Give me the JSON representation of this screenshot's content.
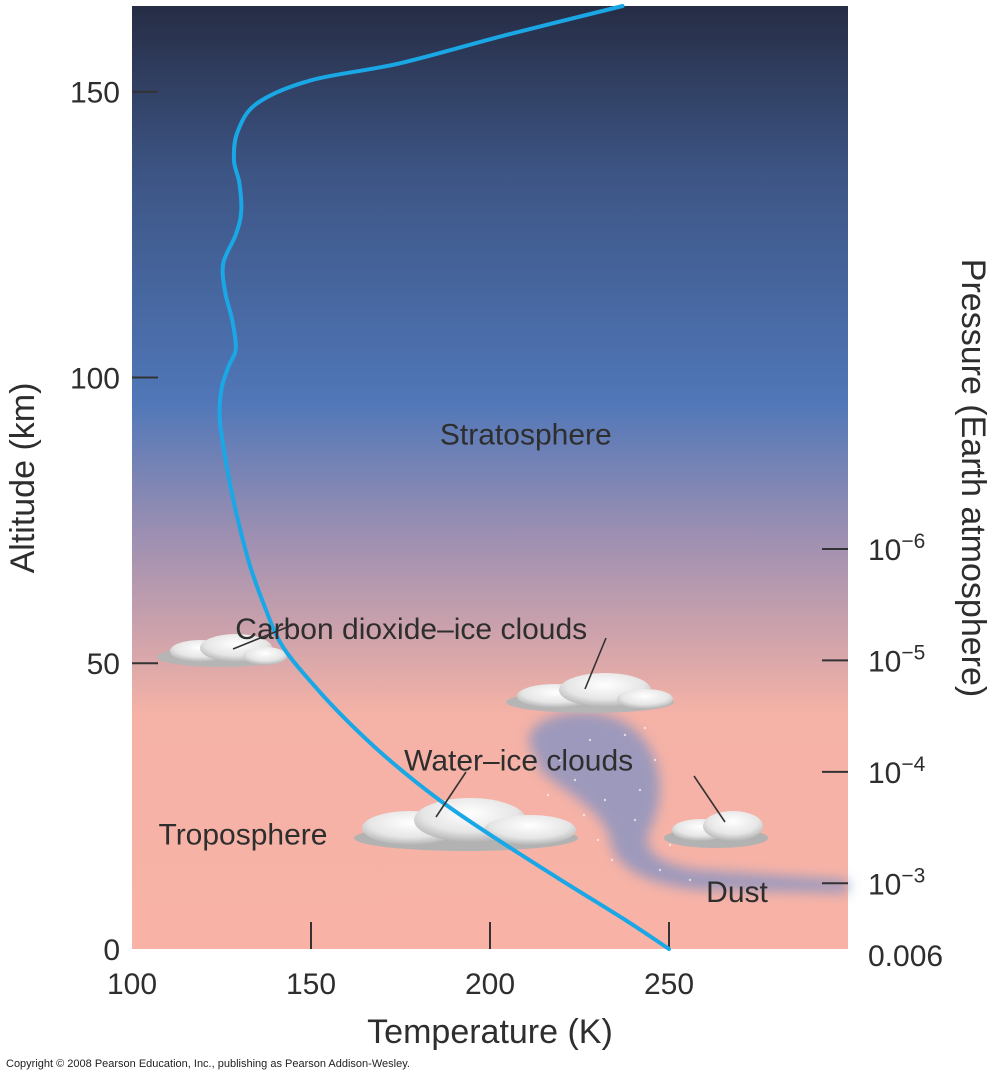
{
  "chart_data": {
    "type": "line",
    "title": "",
    "xlabel": "Temperature (K)",
    "ylabel": "Altitude (km)",
    "y2label": "Pressure (Earth atmosphere)",
    "xlim": [
      100,
      300
    ],
    "ylim": [
      0,
      165
    ],
    "x_ticks": [
      {
        "label": "100",
        "value": 100
      },
      {
        "label": "150",
        "value": 150
      },
      {
        "label": "200",
        "value": 200
      },
      {
        "label": "250",
        "value": 250
      }
    ],
    "y_ticks": [
      {
        "label": "0",
        "value": 0
      },
      {
        "label": "50",
        "value": 50
      },
      {
        "label": "100",
        "value": 100
      },
      {
        "label": "150",
        "value": 150
      }
    ],
    "pressure_ticks": [
      {
        "label": "0.006",
        "altitude": 0,
        "tick": false
      },
      {
        "label": "10",
        "exp": "−3",
        "altitude": 11.5,
        "tick": true
      },
      {
        "label": "10",
        "exp": "−4",
        "altitude": 31,
        "tick": true
      },
      {
        "label": "10",
        "exp": "−5",
        "altitude": 50.5,
        "tick": true
      },
      {
        "label": "10",
        "exp": "−6",
        "altitude": 70,
        "tick": true
      }
    ],
    "series": [
      {
        "name": "",
        "color": "#1aa7e6",
        "points": [
          [
            250,
            0
          ],
          [
            238,
            5
          ],
          [
            220,
            12
          ],
          [
            200,
            20
          ],
          [
            186,
            26
          ],
          [
            172,
            33
          ],
          [
            160,
            40
          ],
          [
            151,
            46
          ],
          [
            142,
            53
          ],
          [
            137,
            60
          ],
          [
            133,
            67
          ],
          [
            130,
            74
          ],
          [
            127.5,
            81
          ],
          [
            125.5,
            88
          ],
          [
            124.5,
            93
          ],
          [
            125,
            98
          ],
          [
            127,
            102
          ],
          [
            129,
            105
          ],
          [
            128,
            110
          ],
          [
            126,
            115
          ],
          [
            125.5,
            120
          ],
          [
            129,
            125
          ],
          [
            130.5,
            129
          ],
          [
            130,
            134
          ],
          [
            128.5,
            138
          ],
          [
            129.5,
            143
          ],
          [
            135,
            148
          ],
          [
            150,
            152
          ],
          [
            175,
            155
          ],
          [
            205,
            160
          ],
          [
            237,
            165
          ]
        ]
      }
    ],
    "grid": false,
    "background_colors": {
      "top": "#262d45",
      "upper": "#3d5585",
      "middle": "#5077b8",
      "lower": "#9c8fb2",
      "pink": "#f5b2a6",
      "bottom": "#f8b3a6"
    },
    "layer_labels": [
      {
        "text": "Stratosphere",
        "x": 210,
        "y": 90
      },
      {
        "text": "Troposphere",
        "x": 131,
        "y": 20
      }
    ],
    "annotations": [
      {
        "text": "Carbon dioxide–ice clouds",
        "x": 178,
        "y": 56
      },
      {
        "text": "Water–ice clouds",
        "x": 208,
        "y": 33
      },
      {
        "text": "Dust",
        "x": 269,
        "y": 10
      }
    ]
  },
  "copyright": "Copyright © 2008 Pearson Education, Inc., publishing as Pearson Addison-Wesley."
}
